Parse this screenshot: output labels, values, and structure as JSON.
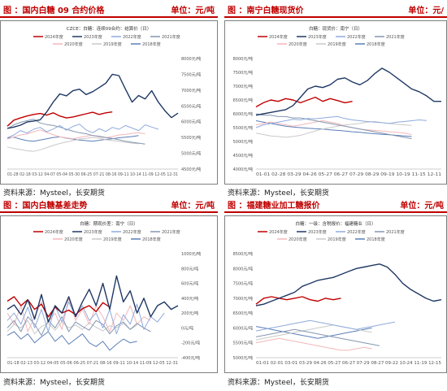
{
  "legend_years": [
    "2024年度",
    "2023年度",
    "2022年度",
    "2021年度",
    "2020年度",
    "2019年度",
    "2018年度"
  ],
  "series_colors": [
    "#c00000",
    "#1f3864",
    "#8faadc",
    "#8497b0",
    "#f4b6b9",
    "#c9c9c9",
    "#5b7fb8"
  ],
  "panels": [
    {
      "title": "图 ：国内白糖 09 合约价格",
      "unit": "单位：元/吨",
      "source": "资料来源：Mysteel，长安期货",
      "chart_data": {
        "type": "line",
        "title": "CZCE：白糖：连续09合约：结算价（日）",
        "y_ticks": [
          "8000元/吨",
          "7500元/吨",
          "7000元/吨",
          "6500元/吨",
          "6000元/吨",
          "5500元/吨",
          "5000元/吨",
          "4500元/吨"
        ],
        "ylim": [
          4500,
          8000
        ],
        "x_ticks": "01-28 02-18 03-12 04-07 05-04 05-30 06-25 07-21 08-16 09-11 10-14 11-09 12-05 12-31",
        "series": [
          {
            "name": "2024年度",
            "values": [
              5860,
              6050,
              6120,
              6180,
              6230,
              6260,
              6210,
              6280,
              6180,
              6120,
              6150,
              6200,
              6250,
              6300,
              6230,
              6280,
              6310
            ]
          },
          {
            "name": "2023年度",
            "values": [
              5790,
              5830,
              5890,
              5990,
              6020,
              6060,
              6310,
              6620,
              6880,
              6820,
              6980,
              7030,
              6860,
              6950,
              7080,
              7220,
              7500,
              7460,
              7030,
              6620,
              6830,
              6720,
              6980,
              6620,
              6350,
              6130,
              6270
            ]
          },
          {
            "name": "2022年度",
            "values": [
              5490,
              5580,
              5720,
              5640,
              5760,
              5820,
              5680,
              5770,
              5880,
              5730,
              5850,
              5920,
              5740,
              5650,
              5780,
              5690,
              5820,
              5760,
              5880,
              5800,
              5720,
              5900,
              5830,
              5760
            ]
          },
          {
            "name": "2021年度",
            "values": [
              5780,
              5900,
              5980,
              6030,
              6080,
              5960,
              5910,
              5880,
              5830,
              5760,
              5700,
              5650,
              5620,
              5560,
              5540,
              5500,
              5470,
              5430,
              5380,
              5350,
              5320,
              5290
            ]
          },
          {
            "name": "2020年度",
            "values": [
              5450,
              5520,
              5580,
              5610,
              5680,
              5740,
              5660,
              5590,
              5520,
              5490,
              5460,
              5500,
              5540,
              5570,
              5520,
              5490,
              5530,
              5580,
              5600,
              5630,
              5650,
              5620
            ]
          },
          {
            "name": "2019年度",
            "values": [
              5200,
              5150,
              5120,
              5080,
              5060,
              5110,
              5180,
              5250,
              5310,
              5360,
              5400,
              5450,
              5470,
              5500,
              5480,
              5430,
              5400,
              5380,
              5350,
              5320,
              5300
            ]
          },
          {
            "name": "2018年度",
            "values": [
              5480,
              5510,
              5450,
              5400,
              5380,
              5420,
              5460,
              5500,
              5520,
              5480,
              5450,
              5420,
              5400,
              5380,
              5410,
              5440,
              5460,
              5490,
              5510,
              5530,
              5560
            ]
          }
        ]
      }
    },
    {
      "title": "图 ：南宁白糖现货价",
      "unit": "单位：元/",
      "source": "资料来源：Mysteel，长安期货",
      "chart_data": {
        "type": "line",
        "title": "白糖：现货价：南宁（日）",
        "y_ticks": [
          "8000元/吨",
          "7500元/吨",
          "7000元/吨",
          "6500元/吨",
          "6000元/吨",
          "5500元/吨",
          "5000元/吨",
          "4500元/吨",
          "4000元/吨"
        ],
        "ylim": [
          4000,
          8000
        ],
        "x_ticks": "01-01 02-28 03-29 04-26 05-27 06-27 07-29 08-29 09-19 10-19 11-15 12-11",
        "series": [
          {
            "name": "2024年度",
            "values": [
              6250,
              6400,
              6500,
              6450,
              6550,
              6500,
              6400,
              6500,
              6600,
              6450,
              6550,
              6480,
              6400,
              6450
            ]
          },
          {
            "name": "2023年度",
            "values": [
              5950,
              6000,
              6050,
              6100,
              6150,
              6300,
              6600,
              6900,
              7000,
              6950,
              7050,
              7250,
              7300,
              7150,
              7050,
              7200,
              7450,
              7650,
              7500,
              7300,
              7100,
              6900,
              6800,
              6650,
              6450,
              6450
            ]
          },
          {
            "name": "2022年度",
            "values": [
              5500,
              5600,
              5650,
              5700,
              5750,
              5800,
              5780,
              5830,
              5820,
              5850,
              5880,
              5900,
              5830,
              5780,
              5750,
              5720,
              5700,
              5680,
              5650,
              5700,
              5720,
              5750,
              5780,
              5760
            ]
          },
          {
            "name": "2021年度",
            "values": [
              6000,
              5950,
              5950,
              5900,
              5900,
              5850,
              5850,
              5800,
              5750,
              5700,
              5650,
              5600,
              5550,
              5500,
              5450,
              5400,
              5350,
              5300,
              5250,
              5200,
              5150,
              5100
            ]
          },
          {
            "name": "2020年度",
            "values": [
              5600,
              5650,
              5700,
              5650,
              5600,
              5550,
              5600,
              5650,
              5700,
              5750,
              5700,
              5650,
              5550,
              5500,
              5450,
              5420,
              5400,
              5380,
              5350,
              5330,
              5300,
              5250
            ]
          },
          {
            "name": "2019年度",
            "values": [
              5300,
              5250,
              5200,
              5180,
              5150,
              5180,
              5220,
              5300,
              5380,
              5450,
              5500,
              5550,
              5600,
              5620,
              5650,
              5700,
              5720,
              5680,
              5650,
              5620,
              5600,
              5580
            ]
          },
          {
            "name": "2018年度",
            "values": [
              5750,
              5700,
              5650,
              5600,
              5550,
              5520,
              5500,
              5480,
              5460,
              5450,
              5420,
              5400,
              5380,
              5350,
              5330,
              5300,
              5280,
              5260,
              5240,
              5220,
              5200,
              5180
            ]
          }
        ]
      }
    },
    {
      "title": "图 ：国内白糖基差走势",
      "unit": "单位：元/吨",
      "source": "资料来源：Mysteel，长安期货",
      "chart_data": {
        "type": "line",
        "title": "白糖：期现价差：南宁（日）",
        "y_ticks": [
          "1000元/吨",
          "800元/吨",
          "600元/吨",
          "400元/吨",
          "200元/吨",
          "0元/吨",
          "-200元/吨",
          "-400元/吨"
        ],
        "ylim": [
          -400,
          1000
        ],
        "x_ticks": "01-18 02-13 03-12 04-05 05-06 06-25 07-21 08-16 09-11 10-14 11-09 12-05 12-31",
        "series": [
          {
            "name": "2024年度",
            "values": [
              360,
              420,
              300,
              380,
              250,
              320,
              150,
              280,
              200,
              240,
              180,
              260,
              300,
              220,
              340,
              280
            ]
          },
          {
            "name": "2023年度",
            "values": [
              250,
              310,
              180,
              380,
              120,
              450,
              80,
              300,
              200,
              420,
              150,
              350,
              520,
              300,
              600,
              250,
              700,
              350,
              500,
              200,
              400,
              150,
              300,
              350,
              250,
              300
            ]
          },
          {
            "name": "2022年度",
            "values": [
              100,
              200,
              50,
              280,
              0,
              250,
              -50,
              300,
              80,
              350,
              150,
              300,
              100,
              200,
              0,
              250,
              -80,
              180,
              50,
              320,
              -20,
              150,
              80,
              200
            ]
          },
          {
            "name": "2021年度",
            "values": [
              0,
              100,
              -50,
              150,
              50,
              -100,
              100,
              0,
              150,
              -50,
              80,
              20,
              -30,
              100,
              50,
              -80,
              30,
              80,
              -20,
              60,
              0,
              -50
            ]
          },
          {
            "name": "2020年度",
            "values": [
              200,
              50,
              300,
              -50,
              150,
              350,
              80,
              200,
              -20,
              400,
              100,
              250,
              50,
              300,
              150,
              -50,
              200,
              100,
              300,
              50,
              150,
              100
            ]
          },
          {
            "name": "2019年度",
            "values": [
              -50,
              50,
              0,
              100,
              -80,
              20,
              60,
              -30,
              80,
              0,
              40,
              -20,
              70,
              10,
              -40,
              30,
              0,
              60,
              -20,
              40
            ]
          },
          {
            "name": "2018年度",
            "values": [
              -100,
              -50,
              -150,
              -80,
              -200,
              -120,
              -50,
              -180,
              -100,
              -220,
              -150,
              -80,
              -200,
              -250,
              -180,
              -300,
              -220,
              -150,
              -200,
              -180
            ]
          }
        ]
      }
    },
    {
      "title": "图 ：福建糖业加工糖报价",
      "unit": "单位：元/吨",
      "source": "资料来源：Mysteel，长安期货",
      "chart_data": {
        "type": "line",
        "title": "白糖：一级：含税报价：福建糖业（日）",
        "y_ticks": [
          "8500元/吨",
          "8000元/吨",
          "7500元/吨",
          "7000元/吨",
          "6500元/吨",
          "6000元/吨",
          "5500元/吨",
          "5000元/吨"
        ],
        "ylim": [
          5000,
          8500
        ],
        "x_ticks": "01-01 02-01 03-01 03-29 04-26 05-27 06-27 07-29 08-27 09-22 10-24 11-19 12-15",
        "series": [
          {
            "name": "2024年度",
            "values": [
              6800,
              7000,
              7050,
              7000,
              6950,
              7000,
              7050,
              6950,
              6900,
              7000,
              6950,
              7000
            ]
          },
          {
            "name": "2023年度",
            "values": [
              6750,
              6800,
              6900,
              7000,
              7100,
              7200,
              7400,
              7500,
              7600,
              7650,
              7700,
              7800,
              7900,
              8000,
              8050,
              8100,
              8150,
              8050,
              7800,
              7500,
              7300,
              7150,
              7000,
              6900,
              6950
            ]
          },
          {
            "name": "2022年度",
            "values": [
              5900,
              5950,
              6000,
              6050,
              6100,
              6150,
              6200,
              6250,
              6200,
              6150,
              6100,
              6050,
              6000,
              5950,
              6000,
              6050,
              6100,
              6150,
              6200
            ]
          },
          {
            "name": "2021年度",
            "values": [
              5700,
              5750,
              5800,
              5850,
              5900,
              5950,
              5900,
              5850,
              5800,
              5750,
              5700,
              5650,
              5600,
              5550,
              5500,
              5450,
              5400
            ]
          },
          {
            "name": "2020年度",
            "values": [
              5500,
              5550,
              5600,
              5650,
              5600,
              5550,
              5500,
              5450,
              5400,
              5350,
              5300,
              5250,
              5250,
              5300,
              5350,
              5300
            ]
          },
          {
            "name": "2019年度",
            "values": [
              5600,
              5650,
              5700,
              5750,
              5800,
              5850,
              5900,
              5950,
              6000,
              6050,
              6100,
              6050,
              6000,
              5950,
              5900,
              5850
            ]
          },
          {
            "name": "2018年度",
            "values": [
              6050,
              6000,
              5950,
              5900,
              5850,
              5800,
              5750,
              5700,
              5650,
              5700,
              5750,
              5800,
              5850,
              5900,
              5950,
              6000
            ]
          }
        ]
      }
    }
  ]
}
